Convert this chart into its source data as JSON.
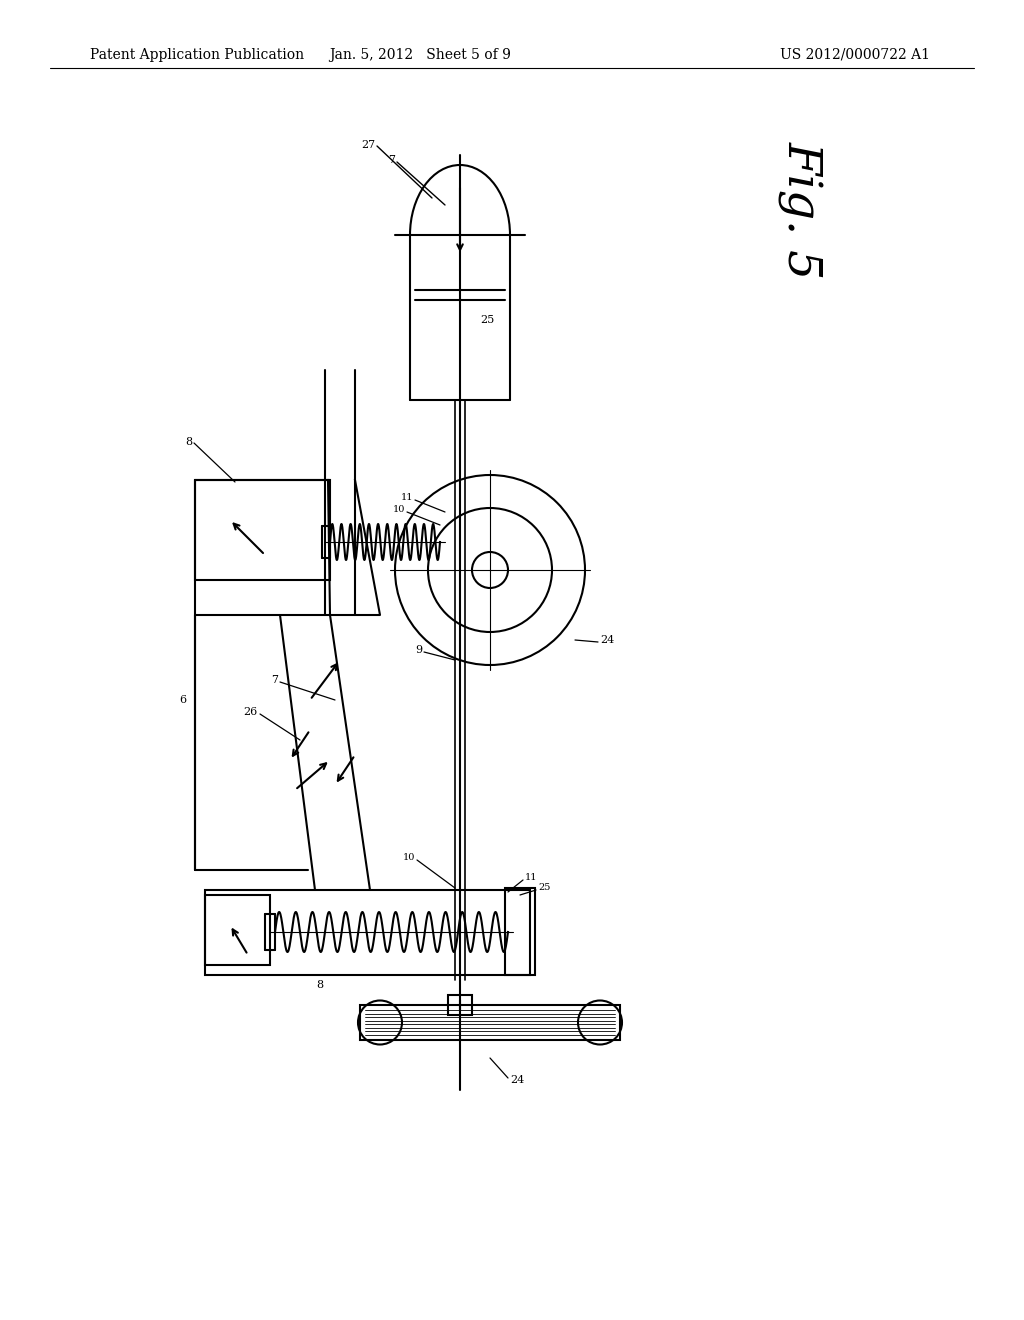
{
  "bg_color": "#ffffff",
  "line_color": "#000000",
  "header_left": "Patent Application Publication",
  "header_mid": "Jan. 5, 2012   Sheet 5 of 9",
  "header_right": "US 2012/0000722 A1"
}
